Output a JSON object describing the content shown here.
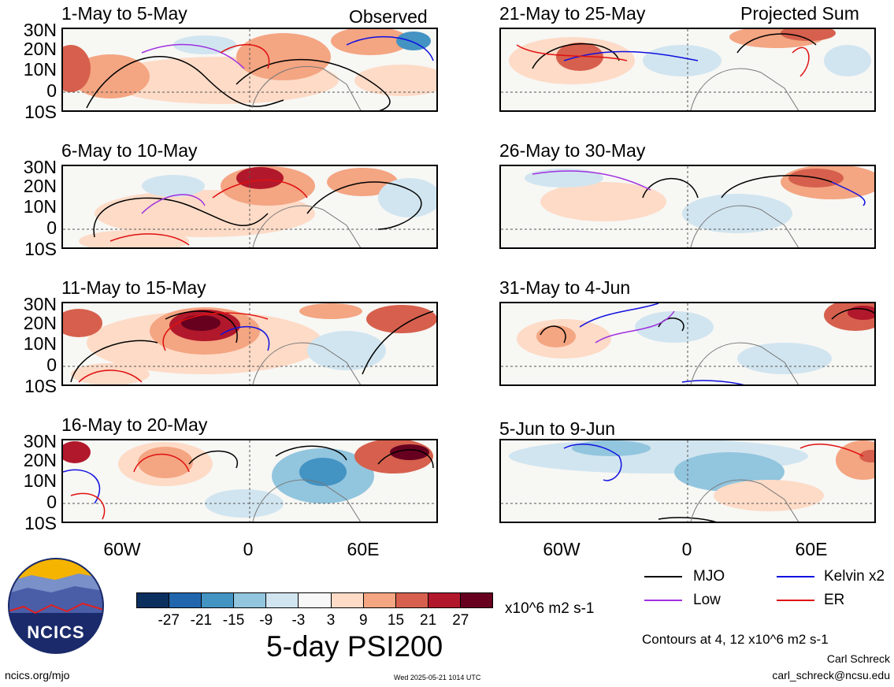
{
  "panels_left": [
    {
      "title": "1-May to 5-May",
      "tag": "Observed"
    },
    {
      "title": "6-May to 10-May",
      "tag": ""
    },
    {
      "title": "11-May to 15-May",
      "tag": ""
    },
    {
      "title": "16-May to 20-May",
      "tag": ""
    }
  ],
  "panels_right": [
    {
      "title": "21-May to 25-May",
      "tag": "Projected Sum"
    },
    {
      "title": "26-May to 30-May",
      "tag": ""
    },
    {
      "title": "31-May to 4-Jun",
      "tag": ""
    },
    {
      "title": "5-Jun to 9-Jun",
      "tag": ""
    }
  ],
  "lat_labels": [
    "30N",
    "20N",
    "10N",
    "0",
    "10S"
  ],
  "lon_labels": [
    "60W",
    "0",
    "60E"
  ],
  "colorbar": {
    "tick_labels": [
      "-27",
      "-21",
      "-15",
      "-9",
      "-3",
      "3",
      "9",
      "15",
      "21",
      "27"
    ],
    "colors": [
      "#0b2f5f",
      "#2166ac",
      "#4393c3",
      "#92c5de",
      "#d1e5f0",
      "#f7f7f7",
      "#fddbc7",
      "#f4a582",
      "#d6604d",
      "#b2182b",
      "#67001f"
    ],
    "units": "x10^6 m2 s-1"
  },
  "chart_title": "5-day PSI200",
  "legend": [
    {
      "label": "MJO",
      "color": "#000000"
    },
    {
      "label": "Kelvin x2",
      "color": "#1010e0"
    },
    {
      "label": "Low",
      "color": "#a030e0"
    },
    {
      "label": "ER",
      "color": "#e01010"
    }
  ],
  "contours_note": "Contours at 4, 12 x10^6 m2 s-1",
  "author": "Carl Schreck",
  "email": "carl_schreck@ncsu.edu",
  "website": "ncics.org/mjo",
  "timestamp": "Wed 2025-05-21 1014 UTC",
  "logo_text": "NCICS"
}
